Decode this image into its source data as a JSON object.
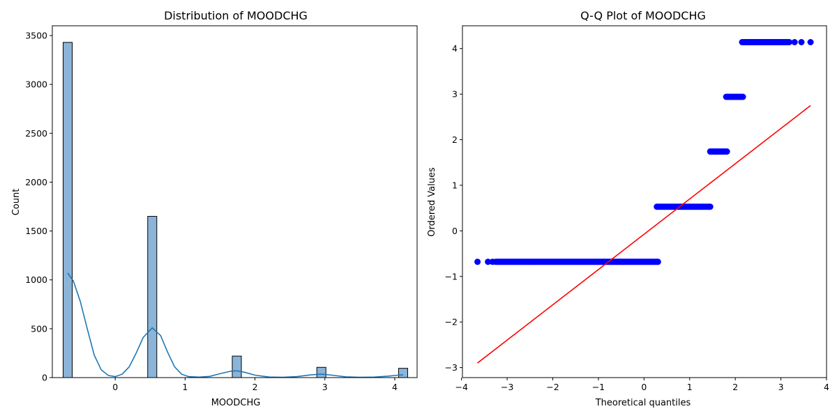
{
  "chart_data": [
    {
      "type": "bar",
      "title": "Distribution of MOODCHG",
      "xlabel": "MOODCHG",
      "ylabel": "Count",
      "xlim": [
        -0.9,
        4.32
      ],
      "ylim": [
        0,
        3600
      ],
      "xticks": [
        0,
        1,
        2,
        3,
        4
      ],
      "yticks": [
        0,
        500,
        1000,
        1500,
        2000,
        2500,
        3000,
        3500
      ],
      "bin_width": 0.13,
      "bars": [
        {
          "x": -0.68,
          "value": 3430
        },
        {
          "x": 0.53,
          "value": 1650
        },
        {
          "x": 1.74,
          "value": 220
        },
        {
          "x": 2.95,
          "value": 105
        },
        {
          "x": 4.12,
          "value": 95
        }
      ],
      "bar_color": "#8bb4d8",
      "kde_color": "#1f77b4",
      "kde": [
        [
          -0.68,
          1070
        ],
        [
          -0.6,
          990
        ],
        [
          -0.5,
          780
        ],
        [
          -0.4,
          500
        ],
        [
          -0.3,
          230
        ],
        [
          -0.2,
          80
        ],
        [
          -0.1,
          22
        ],
        [
          0.0,
          10
        ],
        [
          0.1,
          35
        ],
        [
          0.2,
          110
        ],
        [
          0.3,
          250
        ],
        [
          0.4,
          410
        ],
        [
          0.53,
          510
        ],
        [
          0.65,
          430
        ],
        [
          0.75,
          260
        ],
        [
          0.85,
          110
        ],
        [
          0.95,
          35
        ],
        [
          1.05,
          10
        ],
        [
          1.2,
          5
        ],
        [
          1.35,
          12
        ],
        [
          1.5,
          40
        ],
        [
          1.65,
          65
        ],
        [
          1.74,
          70
        ],
        [
          1.85,
          55
        ],
        [
          2.0,
          25
        ],
        [
          2.2,
          6
        ],
        [
          2.4,
          3
        ],
        [
          2.6,
          10
        ],
        [
          2.8,
          28
        ],
        [
          2.95,
          35
        ],
        [
          3.1,
          25
        ],
        [
          3.3,
          8
        ],
        [
          3.5,
          3
        ],
        [
          3.7,
          5
        ],
        [
          3.9,
          15
        ],
        [
          4.05,
          25
        ],
        [
          4.12,
          28
        ]
      ]
    },
    {
      "type": "scatter",
      "title": "Q-Q Plot of MOODCHG",
      "xlabel": "Theoretical quantiles",
      "ylabel": "Ordered Values",
      "xlim": [
        -3.98,
        4.0
      ],
      "ylim": [
        -3.22,
        4.5
      ],
      "xticks": [
        -4,
        -3,
        -2,
        -1,
        0,
        1,
        2,
        3,
        4
      ],
      "yticks": [
        -3,
        -2,
        -1,
        0,
        1,
        2,
        3,
        4
      ],
      "point_color": "#0000ff",
      "line_color": "#ff0000",
      "fit_line": [
        [
          -3.65,
          -2.9
        ],
        [
          3.65,
          2.75
        ]
      ],
      "groups": [
        {
          "y": -0.68,
          "x_range": [
            -3.25,
            0.32
          ],
          "extra_x": [
            -3.65,
            -3.42,
            -3.32
          ]
        },
        {
          "y": 0.53,
          "x_range": [
            0.28,
            1.45
          ],
          "extra_x": []
        },
        {
          "y": 1.74,
          "x_range": [
            1.45,
            1.82
          ],
          "extra_x": []
        },
        {
          "y": 2.94,
          "x_range": [
            1.8,
            2.18
          ],
          "extra_x": []
        },
        {
          "y": 4.14,
          "x_range": [
            2.15,
            3.2
          ],
          "extra_x": [
            3.3,
            3.45,
            3.65
          ]
        }
      ]
    }
  ]
}
